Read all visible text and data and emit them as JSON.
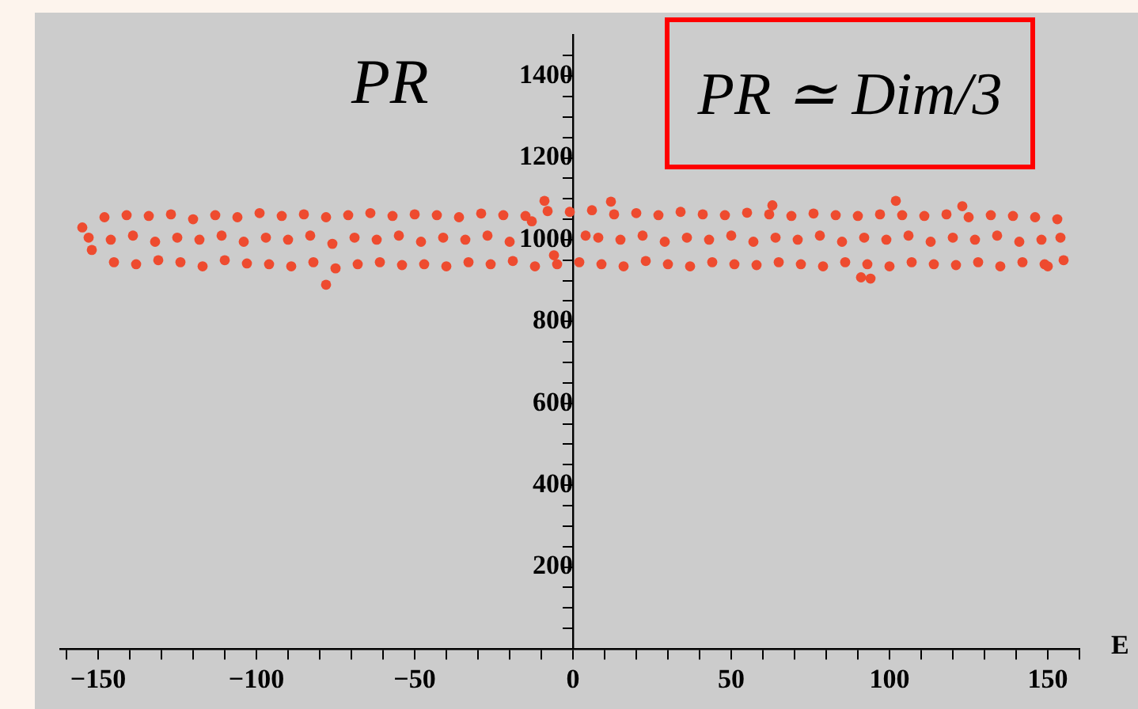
{
  "chart_data": {
    "type": "scatter",
    "xlabel": "E",
    "ylabel": "PR",
    "annotations": [
      "PR ≃ Dim/3"
    ],
    "xlim": [
      -162,
      160
    ],
    "ylim": [
      0,
      1500
    ],
    "xticks": [
      {
        "value": -160,
        "label": null
      },
      {
        "value": -150,
        "label": "−150"
      },
      {
        "value": -140,
        "label": null
      },
      {
        "value": -130,
        "label": null
      },
      {
        "value": -120,
        "label": null
      },
      {
        "value": -110,
        "label": null
      },
      {
        "value": -100,
        "label": "−100"
      },
      {
        "value": -90,
        "label": null
      },
      {
        "value": -80,
        "label": null
      },
      {
        "value": -70,
        "label": null
      },
      {
        "value": -60,
        "label": null
      },
      {
        "value": -50,
        "label": "−50"
      },
      {
        "value": -40,
        "label": null
      },
      {
        "value": -30,
        "label": null
      },
      {
        "value": -20,
        "label": null
      },
      {
        "value": -10,
        "label": null
      },
      0,
      {
        "value": 10,
        "label": null
      },
      {
        "value": 20,
        "label": null
      },
      {
        "value": 30,
        "label": null
      },
      {
        "value": 40,
        "label": null
      },
      50,
      {
        "value": 60,
        "label": null
      },
      {
        "value": 70,
        "label": null
      },
      {
        "value": 80,
        "label": null
      },
      {
        "value": 90,
        "label": null
      },
      100,
      {
        "value": 110,
        "label": null
      },
      {
        "value": 120,
        "label": null
      },
      {
        "value": 130,
        "label": null
      },
      {
        "value": 140,
        "label": null
      },
      150,
      {
        "value": 160,
        "label": null
      }
    ],
    "yticks": [
      {
        "value": 50,
        "label": null
      },
      {
        "value": 100,
        "label": null
      },
      {
        "value": 150,
        "label": null
      },
      200,
      {
        "value": 250,
        "label": null
      },
      {
        "value": 300,
        "label": null
      },
      {
        "value": 350,
        "label": null
      },
      400,
      {
        "value": 450,
        "label": null
      },
      {
        "value": 500,
        "label": null
      },
      {
        "value": 550,
        "label": null
      },
      600,
      {
        "value": 650,
        "label": null
      },
      {
        "value": 700,
        "label": null
      },
      {
        "value": 750,
        "label": null
      },
      800,
      {
        "value": 850,
        "label": null
      },
      {
        "value": 900,
        "label": null
      },
      {
        "value": 950,
        "label": null
      },
      1000,
      {
        "value": 1050,
        "label": null
      },
      {
        "value": 1100,
        "label": null
      },
      {
        "value": 1150,
        "label": null
      },
      1200,
      {
        "value": 1250,
        "label": null
      },
      {
        "value": 1300,
        "label": null
      },
      {
        "value": 1350,
        "label": null
      },
      1400,
      {
        "value": 1450,
        "label": null
      }
    ],
    "marker": "circle",
    "series": [
      {
        "color": "#ee4b2f",
        "x": [
          -155,
          -153,
          -152,
          -148,
          -146,
          -145,
          -141,
          -139,
          -138,
          -134,
          -132,
          -131,
          -127,
          -125,
          -124,
          -120,
          -118,
          -117,
          -113,
          -111,
          -110,
          -106,
          -104,
          -103,
          -99,
          -97,
          -96,
          -92,
          -90,
          -89,
          -85,
          -83,
          -82,
          -78,
          -76,
          -75,
          -71,
          -69,
          -68,
          -64,
          -62,
          -61,
          -57,
          -55,
          -54,
          -50,
          -48,
          -47,
          -43,
          -41,
          -40,
          -36,
          -34,
          -33,
          -29,
          -27,
          -26,
          -22,
          -20,
          -19,
          -15,
          -13,
          -12,
          -8,
          -6,
          -5,
          -1,
          4,
          2,
          6,
          8,
          9,
          13,
          15,
          16,
          20,
          22,
          23,
          27,
          29,
          30,
          34,
          36,
          37,
          41,
          43,
          44,
          48,
          50,
          51,
          55,
          57,
          58,
          62,
          64,
          65,
          69,
          71,
          72,
          76,
          78,
          79,
          83,
          85,
          86,
          90,
          92,
          93,
          97,
          99,
          100,
          104,
          106,
          107,
          111,
          113,
          114,
          118,
          120,
          121,
          125,
          127,
          128,
          132,
          134,
          135,
          139,
          141,
          142,
          146,
          148,
          149,
          153,
          154,
          155,
          -78,
          -9,
          12,
          63,
          91,
          94,
          102,
          123,
          150
        ],
        "values": [
          1030,
          1005,
          975,
          1055,
          1000,
          945,
          1060,
          1010,
          940,
          1058,
          995,
          950,
          1062,
          1005,
          945,
          1050,
          1000,
          935,
          1060,
          1010,
          950,
          1055,
          995,
          942,
          1065,
          1005,
          940,
          1058,
          1000,
          935,
          1062,
          1010,
          945,
          1055,
          990,
          930,
          1060,
          1005,
          940,
          1065,
          1000,
          945,
          1058,
          1010,
          938,
          1062,
          995,
          940,
          1060,
          1005,
          935,
          1055,
          1000,
          945,
          1064,
          1010,
          940,
          1060,
          995,
          948,
          1058,
          1045,
          935,
          1070,
          962,
          940,
          1068,
          1010,
          945,
          1072,
          1005,
          940,
          1062,
          1000,
          935,
          1065,
          1010,
          948,
          1060,
          995,
          940,
          1068,
          1005,
          935,
          1062,
          1000,
          945,
          1060,
          1010,
          940,
          1066,
          995,
          938,
          1062,
          1005,
          945,
          1058,
          1000,
          940,
          1064,
          1010,
          935,
          1060,
          995,
          945,
          1058,
          1005,
          940,
          1062,
          1000,
          935,
          1060,
          1010,
          945,
          1058,
          995,
          940,
          1062,
          1005,
          938,
          1055,
          1000,
          945,
          1060,
          1010,
          935,
          1058,
          995,
          945,
          1055,
          1000,
          940,
          1050,
          1005,
          950,
          890,
          1095,
          1093,
          1084,
          908,
          905,
          1095,
          1082,
          935
        ]
      }
    ]
  }
}
